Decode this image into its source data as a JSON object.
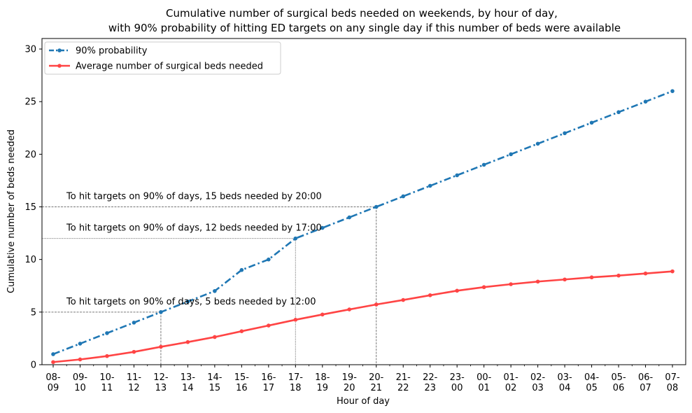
{
  "chart_data": {
    "type": "line",
    "title_lines": [
      "Cumulative number of surgical beds needed on weekends, by hour of day,",
      "with 90% probability of hitting ED targets on any single day if this number of beds were available"
    ],
    "xlabel": "Hour of day",
    "ylabel": "Cumulative number of beds needed",
    "ylim": [
      0,
      31
    ],
    "yticks": [
      0,
      5,
      10,
      15,
      20,
      25,
      30
    ],
    "categories": [
      [
        "08-",
        "09"
      ],
      [
        "09-",
        "10"
      ],
      [
        "10-",
        "11"
      ],
      [
        "11-",
        "12"
      ],
      [
        "12-",
        "13"
      ],
      [
        "13-",
        "14"
      ],
      [
        "14-",
        "15"
      ],
      [
        "15-",
        "16"
      ],
      [
        "16-",
        "17"
      ],
      [
        "17-",
        "18"
      ],
      [
        "18-",
        "19"
      ],
      [
        "19-",
        "20"
      ],
      [
        "20-",
        "21"
      ],
      [
        "21-",
        "22"
      ],
      [
        "22-",
        "23"
      ],
      [
        "23-",
        "00"
      ],
      [
        "00-",
        "01"
      ],
      [
        "01-",
        "02"
      ],
      [
        "02-",
        "03"
      ],
      [
        "03-",
        "04"
      ],
      [
        "04-",
        "05"
      ],
      [
        "05-",
        "06"
      ],
      [
        "06-",
        "07"
      ],
      [
        "07-",
        "08"
      ]
    ],
    "legend_position": "upper-left",
    "series": [
      {
        "name": "90% probability",
        "color": "#1f77b4",
        "line_style": "dash-dot",
        "values": [
          1,
          2,
          3,
          4,
          5,
          6,
          7,
          9,
          10,
          12,
          13,
          14,
          15,
          16,
          17,
          18,
          19,
          20,
          21,
          22,
          23,
          24,
          25,
          26
        ]
      },
      {
        "name": "Average number of surgical beds needed",
        "color": "#ff4444",
        "line_style": "solid",
        "values": [
          0.25,
          0.5,
          0.82,
          1.22,
          1.7,
          2.15,
          2.63,
          3.18,
          3.72,
          4.27,
          4.77,
          5.25,
          5.72,
          6.15,
          6.6,
          7.03,
          7.37,
          7.65,
          7.9,
          8.1,
          8.3,
          8.47,
          8.67,
          8.87
        ]
      }
    ],
    "annotations": [
      {
        "text": "To hit targets on 90% of days, 15 beds needed by 20:00",
        "x_index": 12,
        "y": 15,
        "style": "dashed"
      },
      {
        "text": "To hit targets on 90% of days, 12 beds needed by 17:00",
        "x_index": 9,
        "y": 12,
        "style": "dotted"
      },
      {
        "text": "To hit targets on 90% of days, 5 beds needed by 12:00",
        "x_index": 4,
        "y": 5,
        "style": "dashed"
      }
    ]
  }
}
